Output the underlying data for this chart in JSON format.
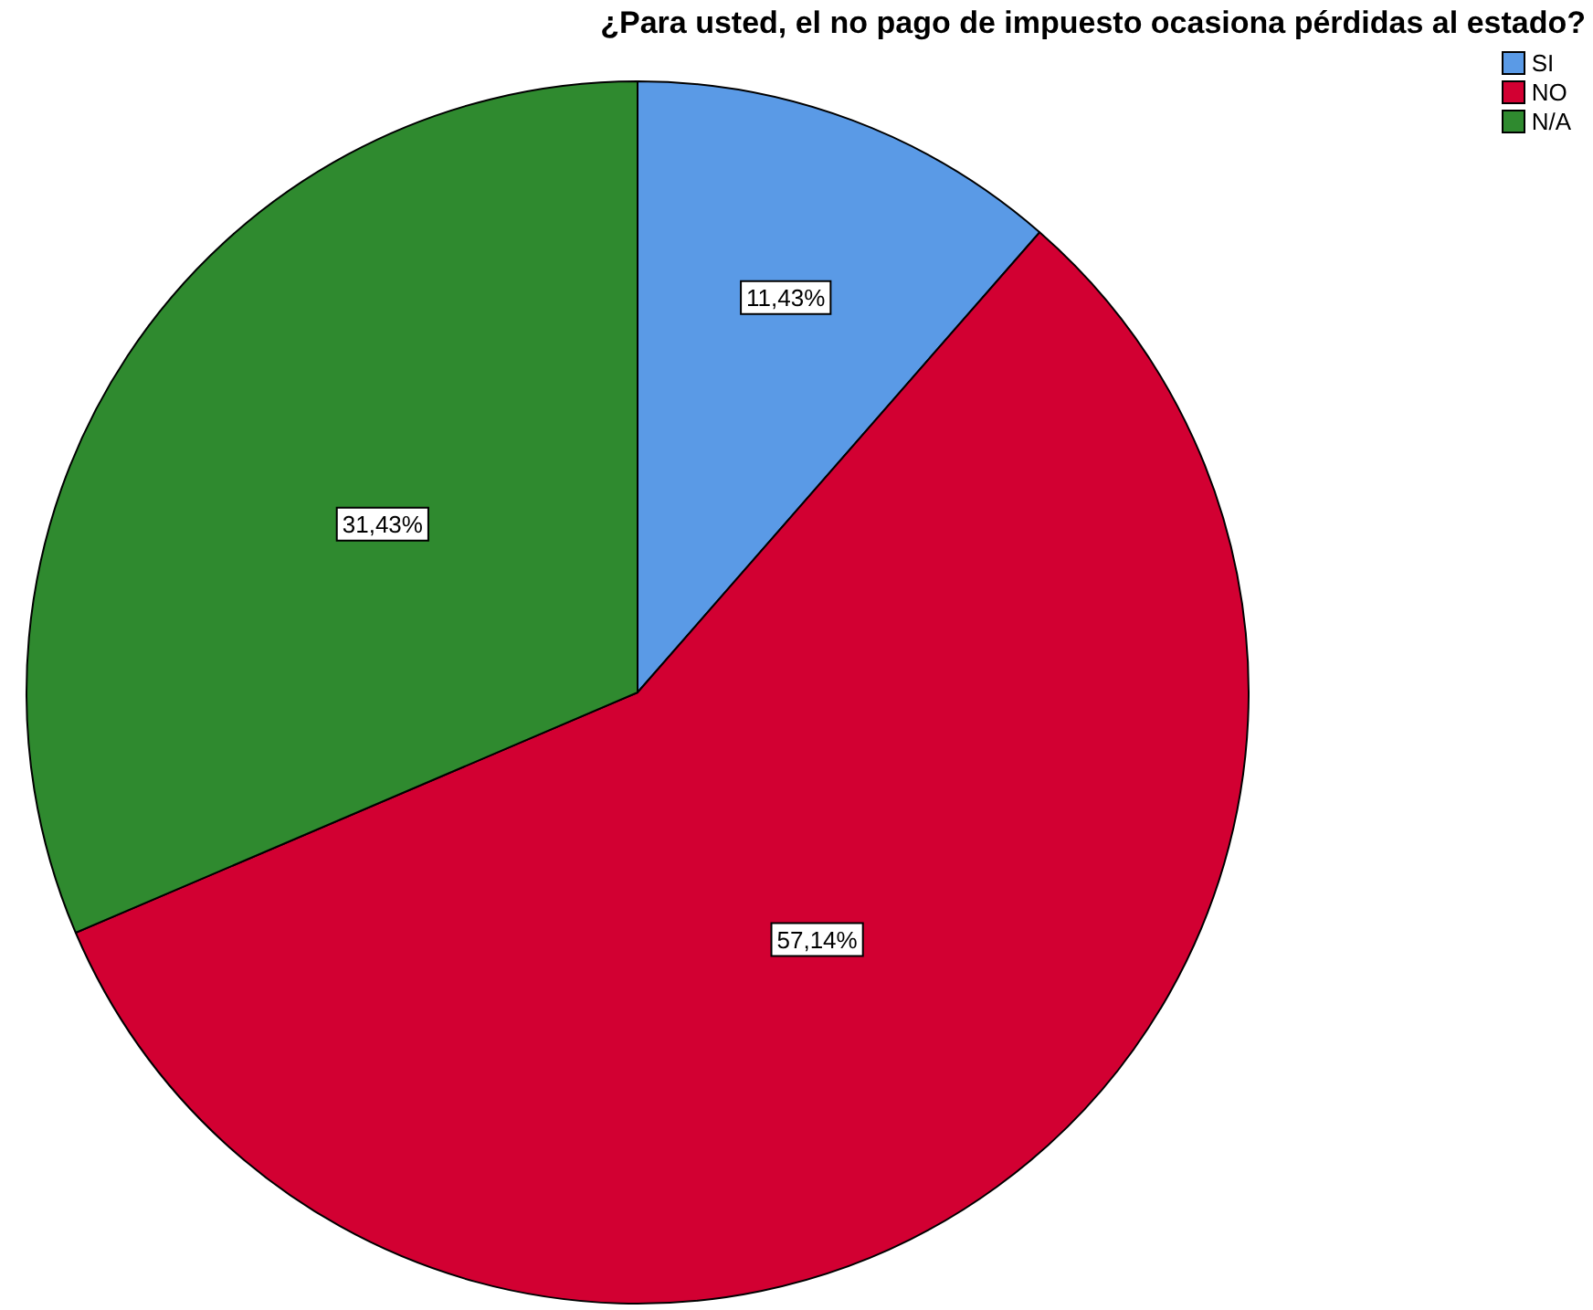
{
  "chart_data": {
    "type": "pie",
    "title": "¿Para usted, el no pago de impuesto ocasiona pérdidas al estado?",
    "categories": [
      "SI",
      "NO",
      "N/A"
    ],
    "values": [
      11.43,
      57.14,
      31.43
    ],
    "value_labels": [
      "11,43%",
      "57,14%",
      "31,43%"
    ],
    "colors": [
      "#5a9ae6",
      "#d20032",
      "#2f8a2f"
    ],
    "legend": "top right"
  }
}
